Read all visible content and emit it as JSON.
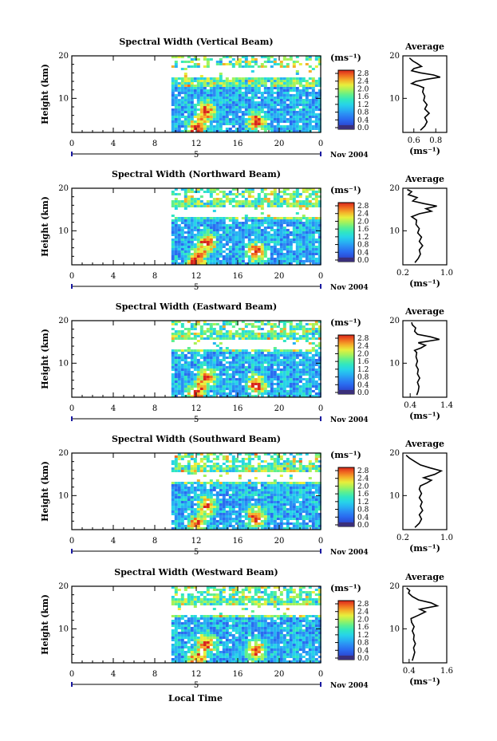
{
  "colors": {
    "background": "#ffffff",
    "axis": "#000000",
    "colormap": [
      "#3a2f7a",
      "#2b4fd8",
      "#2a6cf0",
      "#2b8cf4",
      "#27b3f2",
      "#27d4e8",
      "#30e6c2",
      "#5ef08e",
      "#a6f25a",
      "#e8ee3c",
      "#f4b02a",
      "#f06a20",
      "#d8261c"
    ]
  },
  "figure": {
    "xlabel": "Local Time",
    "date_label": "Nov 2004",
    "day_marker": "5"
  },
  "chart_data": [
    {
      "type": "heatmap",
      "title": "Spectral Width (Vertical Beam)",
      "ylabel": "Height (km)",
      "x_ticks": [
        "0",
        "4",
        "8",
        "12",
        "16",
        "20",
        "0"
      ],
      "xlim": [
        0,
        24
      ],
      "y_ticks": [
        "10",
        "20"
      ],
      "ylim": [
        2,
        20
      ],
      "data_start_hour": 9.6,
      "gap_km": [
        14.8,
        17.2
      ],
      "hotspots": [
        {
          "hour": 12,
          "km": 3
        },
        {
          "hour": 13,
          "km": 7
        },
        {
          "hour": 17.8,
          "km": 4.5
        }
      ],
      "colorbar": {
        "unit": "(ms⁻¹)",
        "ticks": [
          "2.8",
          "2.4",
          "2.0",
          "1.6",
          "1.2",
          "0.8",
          "0.4",
          "0.0"
        ],
        "range": [
          0,
          2.8
        ]
      },
      "average": {
        "title": "Average",
        "xlabel": "(ms⁻¹)",
        "x_ticks": [
          "0.6",
          "0.8"
        ],
        "xlim": [
          0.5,
          0.9
        ],
        "ylim": [
          2,
          20
        ],
        "y_ticks": [
          "10",
          "20"
        ],
        "profile": [
          [
            0.66,
            2.5
          ],
          [
            0.7,
            3.5
          ],
          [
            0.72,
            4.5
          ],
          [
            0.7,
            5.5
          ],
          [
            0.74,
            6.5
          ],
          [
            0.7,
            7.5
          ],
          [
            0.72,
            8.5
          ],
          [
            0.69,
            9.5
          ],
          [
            0.7,
            10.5
          ],
          [
            0.68,
            11.5
          ],
          [
            0.69,
            12.5
          ],
          [
            0.64,
            13
          ],
          [
            0.58,
            13.5
          ],
          [
            0.62,
            14
          ],
          [
            0.72,
            14.5
          ],
          [
            0.84,
            15
          ],
          [
            0.78,
            15.5
          ],
          [
            0.66,
            16
          ],
          [
            0.58,
            16.5
          ],
          [
            0.6,
            17
          ],
          [
            0.67,
            17.5
          ],
          [
            0.63,
            18.2
          ],
          [
            0.59,
            18.8
          ],
          [
            0.56,
            19.5
          ]
        ]
      }
    },
    {
      "type": "heatmap",
      "title": "Spectral Width (Northward Beam)",
      "ylabel": "Height (km)",
      "x_ticks": [
        "0",
        "4",
        "8",
        "12",
        "16",
        "20",
        "0"
      ],
      "xlim": [
        0,
        24
      ],
      "y_ticks": [
        "10",
        "20"
      ],
      "ylim": [
        2,
        20
      ],
      "data_start_hour": 9.6,
      "gap_km": [
        13.5,
        15.5
      ],
      "hotspots": [
        {
          "hour": 12,
          "km": 3
        },
        {
          "hour": 13,
          "km": 7
        },
        {
          "hour": 17.8,
          "km": 5
        }
      ],
      "colorbar": {
        "unit": "(ms⁻¹)",
        "ticks": [
          "2.8",
          "2.4",
          "2.0",
          "1.6",
          "1.2",
          "0.8",
          "0.4",
          "0.0"
        ],
        "range": [
          0,
          2.8
        ]
      },
      "average": {
        "title": "Average",
        "xlabel": "(ms⁻¹)",
        "x_ticks": [
          "0.2",
          "1.0"
        ],
        "xlim": [
          0.2,
          1.0
        ],
        "ylim": [
          2,
          20
        ],
        "y_ticks": [
          "10",
          "20"
        ],
        "profile": [
          [
            0.42,
            2.5
          ],
          [
            0.48,
            3.5
          ],
          [
            0.52,
            4.5
          ],
          [
            0.5,
            5.5
          ],
          [
            0.56,
            6.5
          ],
          [
            0.5,
            7.5
          ],
          [
            0.54,
            8.5
          ],
          [
            0.47,
            9.5
          ],
          [
            0.5,
            10.5
          ],
          [
            0.44,
            11.5
          ],
          [
            0.45,
            12.5
          ],
          [
            0.36,
            13.3
          ],
          [
            0.5,
            14
          ],
          [
            0.72,
            14.6
          ],
          [
            0.62,
            15.2
          ],
          [
            0.82,
            15.8
          ],
          [
            0.58,
            16.4
          ],
          [
            0.38,
            17
          ],
          [
            0.46,
            17.8
          ],
          [
            0.3,
            18.5
          ],
          [
            0.36,
            19.2
          ],
          [
            0.28,
            19.7
          ]
        ]
      }
    },
    {
      "type": "heatmap",
      "title": "Spectral Width (Eastward Beam)",
      "ylabel": "Height (km)",
      "x_ticks": [
        "0",
        "4",
        "8",
        "12",
        "16",
        "20",
        "0"
      ],
      "xlim": [
        0,
        24
      ],
      "y_ticks": [
        "10",
        "20"
      ],
      "ylim": [
        2,
        20
      ],
      "data_start_hour": 9.6,
      "gap_km": [
        13.2,
        15.6
      ],
      "hotspots": [
        {
          "hour": 12,
          "km": 3
        },
        {
          "hour": 13,
          "km": 6.5
        },
        {
          "hour": 17.8,
          "km": 5
        }
      ],
      "colorbar": {
        "unit": "(ms⁻¹)",
        "ticks": [
          "2.8",
          "2.4",
          "2.0",
          "1.6",
          "1.2",
          "0.8",
          "0.4",
          "0.0"
        ],
        "range": [
          0,
          2.8
        ]
      },
      "average": {
        "title": "Average",
        "xlabel": "(ms⁻¹)",
        "x_ticks": [
          "0.4",
          "1.4"
        ],
        "xlim": [
          0.2,
          1.4
        ],
        "ylim": [
          2,
          20
        ],
        "y_ticks": [
          "10",
          "20"
        ],
        "profile": [
          [
            0.58,
            2.5
          ],
          [
            0.62,
            3.5
          ],
          [
            0.64,
            4.5
          ],
          [
            0.6,
            5.5
          ],
          [
            0.66,
            6.5
          ],
          [
            0.6,
            7.5
          ],
          [
            0.62,
            8.5
          ],
          [
            0.56,
            9.5
          ],
          [
            0.6,
            10.5
          ],
          [
            0.56,
            11.5
          ],
          [
            0.58,
            12.5
          ],
          [
            0.52,
            13
          ],
          [
            0.7,
            13.6
          ],
          [
            0.82,
            14.2
          ],
          [
            0.62,
            14.8
          ],
          [
            1.2,
            15.6
          ],
          [
            0.96,
            16.2
          ],
          [
            0.6,
            16.8
          ],
          [
            0.52,
            17.5
          ],
          [
            0.55,
            18.3
          ],
          [
            0.46,
            19
          ],
          [
            0.44,
            19.6
          ]
        ]
      }
    },
    {
      "type": "heatmap",
      "title": "Spectral Width (Southward Beam)",
      "ylabel": "Height (km)",
      "x_ticks": [
        "0",
        "4",
        "8",
        "12",
        "16",
        "20",
        "0"
      ],
      "xlim": [
        0,
        24
      ],
      "y_ticks": [
        "10",
        "20"
      ],
      "ylim": [
        2,
        20
      ],
      "data_start_hour": 9.6,
      "gap_km": [
        13.5,
        15.6
      ],
      "hotspots": [
        {
          "hour": 12,
          "km": 3
        },
        {
          "hour": 13,
          "km": 7.5
        },
        {
          "hour": 17.8,
          "km": 5
        }
      ],
      "colorbar": {
        "unit": "(ms⁻¹)",
        "ticks": [
          "2.8",
          "2.4",
          "2.0",
          "1.6",
          "1.2",
          "0.8",
          "0.4",
          "0.0"
        ],
        "range": [
          0,
          2.8
        ]
      },
      "average": {
        "title": "Average",
        "xlabel": "(ms⁻¹)",
        "x_ticks": [
          "0.2",
          "1.0"
        ],
        "xlim": [
          0.2,
          1.0
        ],
        "ylim": [
          2,
          20
        ],
        "y_ticks": [
          "10",
          "20"
        ],
        "profile": [
          [
            0.42,
            2.5
          ],
          [
            0.5,
            3.5
          ],
          [
            0.54,
            4.5
          ],
          [
            0.5,
            5.5
          ],
          [
            0.56,
            6.5
          ],
          [
            0.52,
            7.5
          ],
          [
            0.55,
            8.5
          ],
          [
            0.5,
            9.5
          ],
          [
            0.54,
            10.5
          ],
          [
            0.5,
            11.5
          ],
          [
            0.52,
            12.3
          ],
          [
            0.64,
            13
          ],
          [
            0.72,
            13.6
          ],
          [
            0.58,
            14.2
          ],
          [
            0.78,
            15
          ],
          [
            0.9,
            15.8
          ],
          [
            0.7,
            16.5
          ],
          [
            0.52,
            17.2
          ],
          [
            0.42,
            18
          ],
          [
            0.32,
            18.8
          ],
          [
            0.26,
            19.5
          ]
        ]
      }
    },
    {
      "type": "heatmap",
      "title": "Spectral Width (Westward Beam)",
      "ylabel": "Height (km)",
      "x_ticks": [
        "0",
        "4",
        "8",
        "12",
        "16",
        "20",
        "0"
      ],
      "xlim": [
        0,
        24
      ],
      "y_ticks": [
        "10",
        "20"
      ],
      "ylim": [
        2,
        20
      ],
      "data_start_hour": 9.6,
      "gap_km": [
        13.2,
        15.4
      ],
      "hotspots": [
        {
          "hour": 12,
          "km": 2.5
        },
        {
          "hour": 13,
          "km": 6.5
        },
        {
          "hour": 17.8,
          "km": 5
        }
      ],
      "colorbar": {
        "unit": "(ms⁻¹)",
        "ticks": [
          "2.8",
          "2.4",
          "2.0",
          "1.6",
          "1.2",
          "0.8",
          "0.4",
          "0.0"
        ],
        "range": [
          0,
          2.8
        ]
      },
      "average": {
        "title": "Average",
        "xlabel": "(ms⁻¹)",
        "x_ticks": [
          "0.4",
          "1.6"
        ],
        "xlim": [
          0.2,
          1.6
        ],
        "ylim": [
          2,
          20
        ],
        "y_ticks": [
          "10",
          "20"
        ],
        "profile": [
          [
            0.5,
            2.5
          ],
          [
            0.54,
            3.5
          ],
          [
            0.58,
            4.5
          ],
          [
            0.54,
            5.5
          ],
          [
            0.6,
            6.5
          ],
          [
            0.54,
            7.5
          ],
          [
            0.56,
            8.5
          ],
          [
            0.5,
            9.5
          ],
          [
            0.56,
            10.5
          ],
          [
            0.48,
            11.5
          ],
          [
            0.46,
            12.4
          ],
          [
            0.7,
            13.2
          ],
          [
            0.92,
            14
          ],
          [
            0.74,
            14.6
          ],
          [
            1.3,
            15.4
          ],
          [
            1.1,
            16.1
          ],
          [
            0.7,
            16.8
          ],
          [
            0.5,
            17.6
          ],
          [
            0.38,
            18.4
          ],
          [
            0.42,
            19
          ],
          [
            0.32,
            19.6
          ]
        ]
      }
    }
  ]
}
